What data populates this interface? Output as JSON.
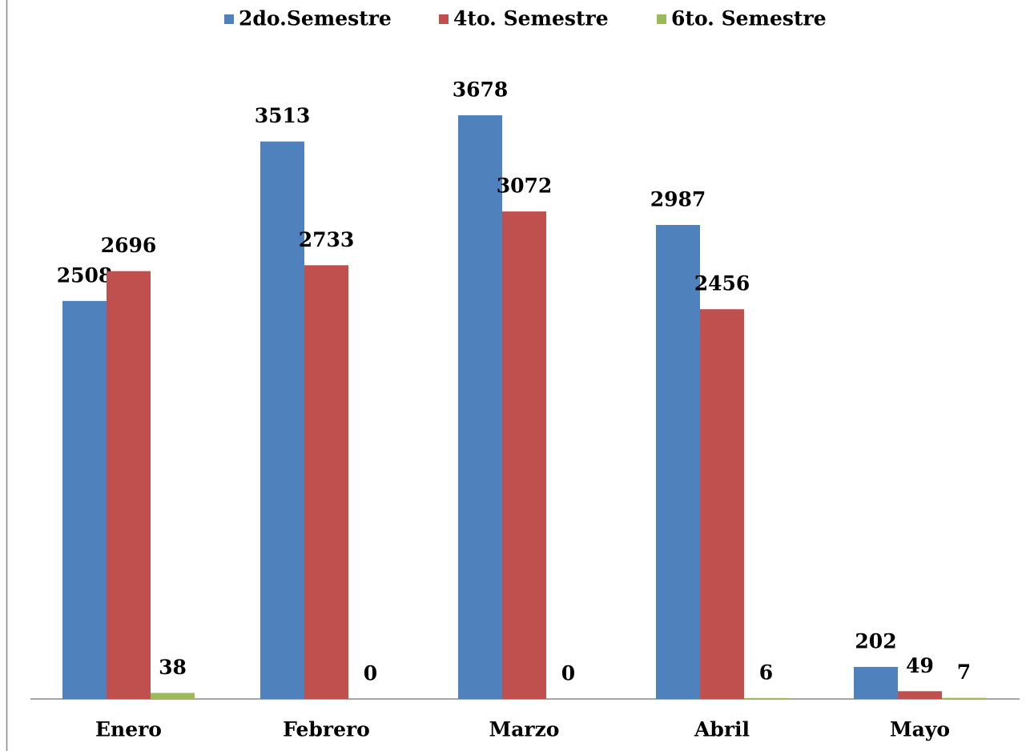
{
  "chart_data": {
    "type": "bar",
    "categories": [
      "Enero",
      "Febrero",
      "Marzo",
      "Abril",
      "Mayo"
    ],
    "series": [
      {
        "name": "2do.Semestre",
        "color": "#4f81bd",
        "values": [
          2508,
          3513,
          3678,
          2987,
          202
        ]
      },
      {
        "name": "4to. Semestre",
        "color": "#c0504d",
        "values": [
          2696,
          2733,
          3072,
          2456,
          49
        ]
      },
      {
        "name": "6to. Semestre",
        "color": "#9bbb59",
        "values": [
          38,
          0,
          0,
          6,
          7
        ]
      }
    ],
    "legend": "top"
  }
}
